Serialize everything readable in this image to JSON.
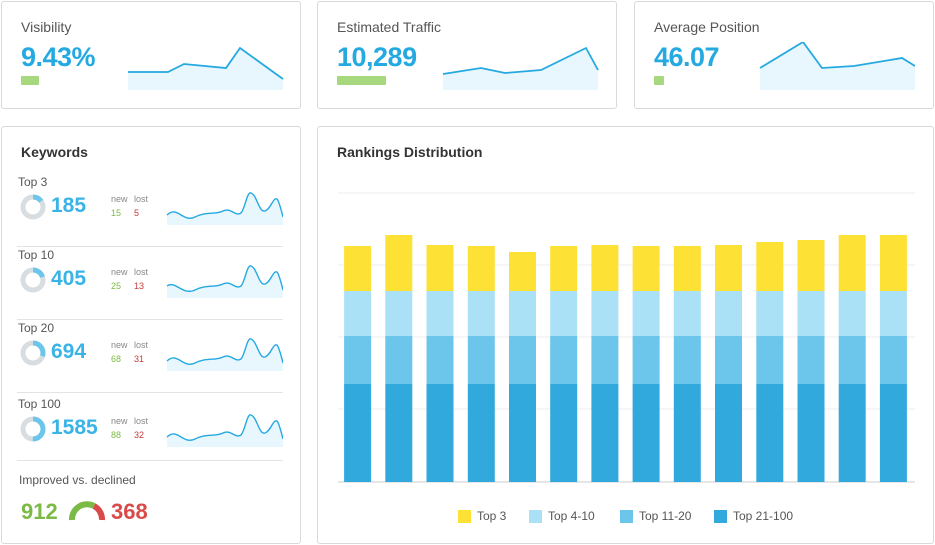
{
  "metrics": {
    "visibility": {
      "title": "Visibility",
      "value": "9.43%",
      "bar_level": 0.11
    },
    "traffic": {
      "title": "Estimated Traffic",
      "value": "10,289",
      "bar_level": 0.19
    },
    "position": {
      "title": "Average Position",
      "value": "46.07",
      "bar_level": 0.04
    }
  },
  "keywords": {
    "title": "Keywords",
    "new_label": "new",
    "lost_label": "lost",
    "rows": [
      {
        "label": "Top 3",
        "count": "185",
        "new": "15",
        "lost": "5",
        "share": 0.15
      },
      {
        "label": "Top 10",
        "count": "405",
        "new": "25",
        "lost": "13",
        "share": 0.2
      },
      {
        "label": "Top 20",
        "count": "694",
        "new": "68",
        "lost": "31",
        "share": 0.3
      },
      {
        "label": "Top 100",
        "count": "1585",
        "new": "88",
        "lost": "32",
        "share": 0.5
      }
    ],
    "improved_label": "Improved vs. declined",
    "improved": "912",
    "declined": "368"
  },
  "rankings": {
    "title": "Rankings Distribution",
    "colors": {
      "top3": "#fde135",
      "top4_10": "#abe1f7",
      "top11_20": "#6cc5ea",
      "top21_100": "#31a9dc"
    },
    "legend": [
      "Top 3",
      "Top 4-10",
      "Top 11-20",
      "Top 21-100"
    ]
  },
  "chart_data": {
    "type": "bar",
    "stacked": true,
    "grid": true,
    "legend_position": "bottom",
    "series": [
      {
        "name": "Top 21-100",
        "values": [
          98,
          98,
          98,
          98,
          98,
          98,
          98,
          98,
          98,
          98,
          98,
          98,
          98,
          98
        ]
      },
      {
        "name": "Top 11-20",
        "values": [
          48,
          48,
          48,
          48,
          48,
          48,
          48,
          48,
          48,
          48,
          48,
          48,
          48,
          48
        ]
      },
      {
        "name": "Top 4-10",
        "values": [
          45,
          45,
          45,
          45,
          45,
          45,
          45,
          45,
          45,
          45,
          45,
          45,
          45,
          45
        ]
      },
      {
        "name": "Top 3",
        "values": [
          45,
          56,
          46,
          45,
          39,
          45,
          46,
          45,
          45,
          46,
          49,
          51,
          56,
          56
        ]
      }
    ]
  }
}
